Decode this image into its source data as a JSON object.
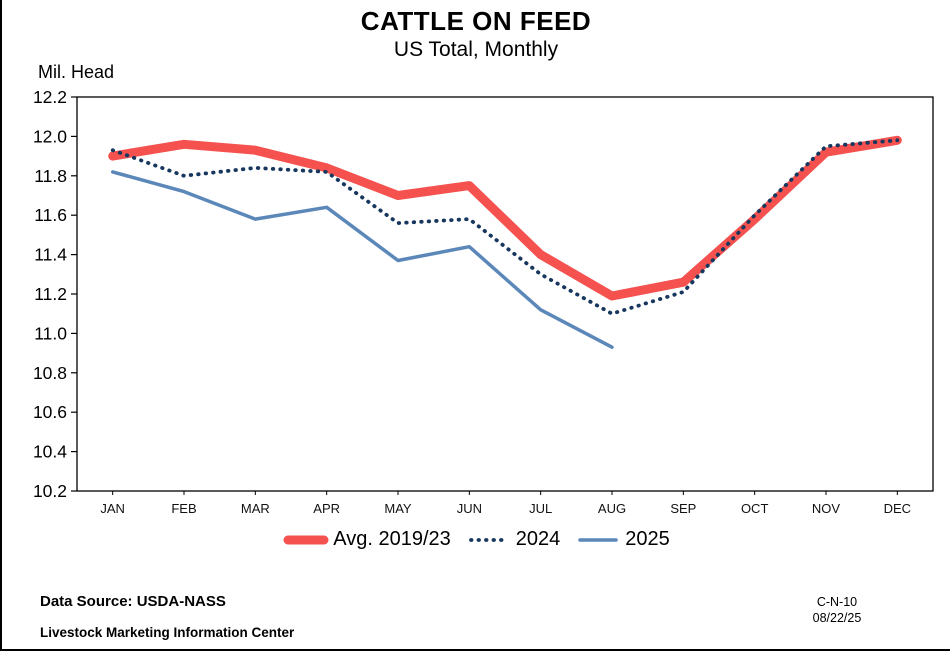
{
  "header": {
    "title": "CATTLE ON FEED",
    "subtitle": "US Total, Monthly"
  },
  "y_axis_unit": "Mil. Head",
  "chart_data": {
    "type": "line",
    "title": "CATTLE ON FEED",
    "subtitle": "US Total, Monthly",
    "ylabel": "Mil. Head",
    "xlabel": "",
    "ylim": [
      10.2,
      12.2
    ],
    "ytick_step": 0.2,
    "grid": false,
    "legend_position": "bottom",
    "categories": [
      "JAN",
      "FEB",
      "MAR",
      "APR",
      "MAY",
      "JUN",
      "JUL",
      "AUG",
      "SEP",
      "OCT",
      "NOV",
      "DEC"
    ],
    "series": [
      {
        "name": "Avg. 2019/23",
        "color": "#f4514f",
        "style": "thick",
        "values": [
          11.9,
          11.96,
          11.93,
          11.84,
          11.7,
          11.75,
          11.4,
          11.19,
          11.26,
          11.58,
          11.92,
          11.98
        ]
      },
      {
        "name": "2024",
        "color": "#17375e",
        "style": "dotted",
        "values": [
          11.93,
          11.8,
          11.84,
          11.82,
          11.56,
          11.58,
          11.3,
          11.1,
          11.21,
          11.6,
          11.95,
          11.98
        ]
      },
      {
        "name": "2025",
        "color": "#5b87b9",
        "style": "solid",
        "values": [
          11.82,
          11.72,
          11.58,
          11.64,
          11.37,
          11.44,
          11.12,
          10.93,
          null,
          null,
          null,
          null
        ]
      }
    ]
  },
  "footer": {
    "source": "Data Source:  USDA-NASS",
    "org": "Livestock Marketing Information Center",
    "code": "C-N-10",
    "date": "08/22/25"
  }
}
